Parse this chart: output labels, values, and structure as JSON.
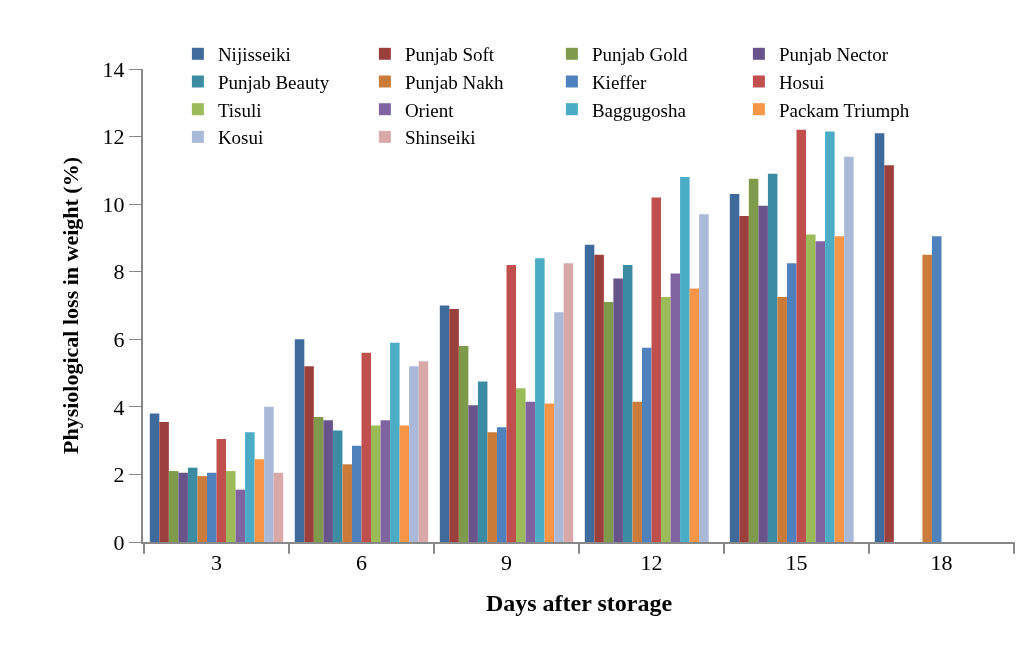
{
  "chart_data": {
    "type": "bar",
    "xlabel": "Days after storage",
    "ylabel": "Physiological loss in weight (%)",
    "categories": [
      "3",
      "6",
      "9",
      "12",
      "15",
      "18"
    ],
    "series": [
      {
        "name": "Nijisseiki",
        "color": "#3f6a9c",
        "values": [
          3.8,
          6.0,
          7.0,
          8.8,
          10.3,
          12.1
        ]
      },
      {
        "name": "Punjab Soft",
        "color": "#9c403e",
        "values": [
          3.55,
          5.2,
          6.9,
          8.5,
          9.65,
          11.15
        ]
      },
      {
        "name": "Punjab Gold",
        "color": "#7f9a4a",
        "values": [
          2.1,
          3.7,
          5.8,
          7.1,
          10.75,
          null
        ]
      },
      {
        "name": "Punjab Nector",
        "color": "#68538a",
        "values": [
          2.05,
          3.6,
          4.05,
          7.8,
          9.95,
          null
        ]
      },
      {
        "name": "Punjab Beauty",
        "color": "#3b8ca3",
        "values": [
          2.2,
          3.3,
          4.75,
          8.2,
          10.9,
          null
        ]
      },
      {
        "name": "Punjab Nakh",
        "color": "#cb7b39",
        "values": [
          1.95,
          2.3,
          3.25,
          4.15,
          7.25,
          8.5
        ]
      },
      {
        "name": "Kieffer",
        "color": "#4f81bd",
        "values": [
          2.05,
          2.85,
          3.4,
          5.75,
          8.25,
          9.05
        ]
      },
      {
        "name": "Hosui",
        "color": "#c0504d",
        "values": [
          3.05,
          5.6,
          8.2,
          10.2,
          12.2,
          null
        ]
      },
      {
        "name": "Tisuli",
        "color": "#9bbb59",
        "values": [
          2.1,
          3.45,
          4.55,
          7.25,
          9.1,
          null
        ]
      },
      {
        "name": "Orient",
        "color": "#8064a2",
        "values": [
          1.55,
          3.6,
          4.15,
          7.95,
          8.9,
          null
        ]
      },
      {
        "name": "Baggugosha",
        "color": "#4bacc6",
        "values": [
          3.25,
          5.9,
          8.4,
          10.8,
          12.15,
          null
        ]
      },
      {
        "name": "Packam Triumph",
        "color": "#f79646",
        "values": [
          2.45,
          3.45,
          4.1,
          7.5,
          9.05,
          null
        ]
      },
      {
        "name": "Kosui",
        "color": "#aab9d8",
        "values": [
          4.0,
          5.2,
          6.8,
          9.7,
          11.4,
          null
        ]
      },
      {
        "name": "Shinseiki",
        "color": "#d9a9a9",
        "values": [
          2.05,
          5.35,
          8.25,
          null,
          null,
          null
        ]
      }
    ],
    "ylim": [
      0,
      14
    ],
    "yticks": [
      0,
      2,
      4,
      6,
      8,
      10,
      12,
      14
    ],
    "grid": false,
    "legend": "top"
  }
}
